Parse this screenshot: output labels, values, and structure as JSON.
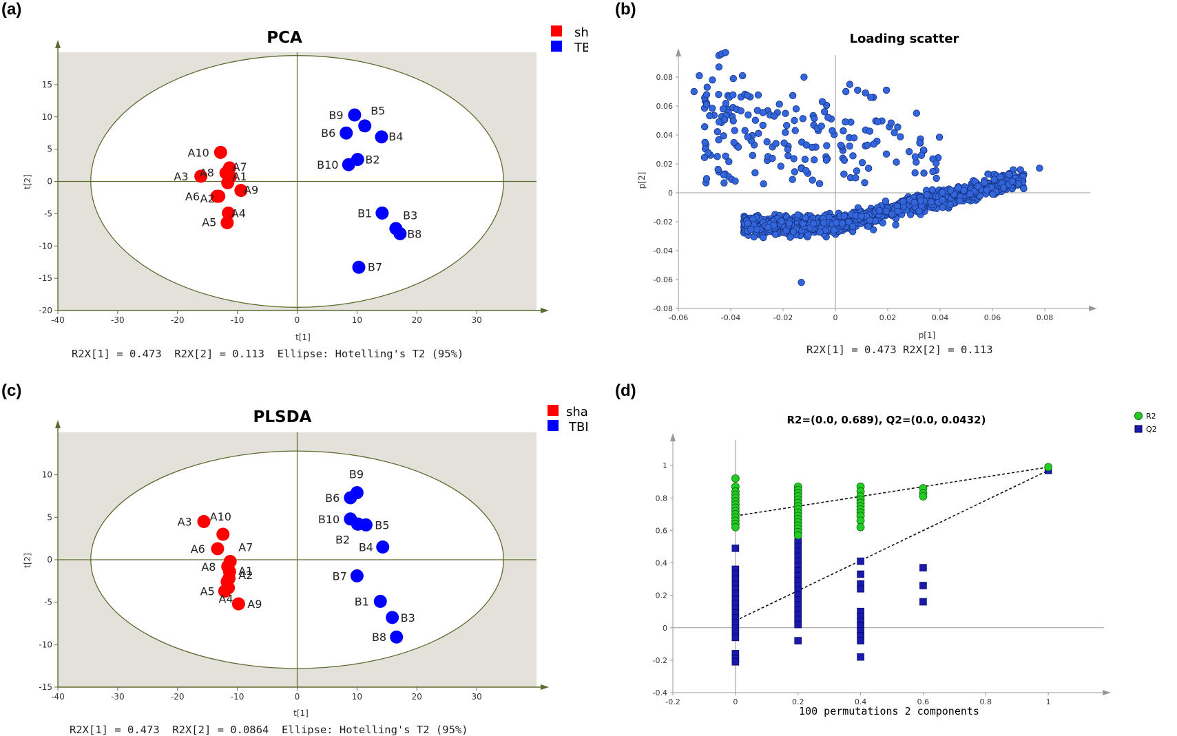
{
  "panels": [
    {
      "letter": "(a)"
    },
    {
      "letter": "(b)"
    },
    {
      "letter": "(c)"
    },
    {
      "letter": "(d)"
    }
  ],
  "colors": {
    "sham": "#ff0000",
    "tbi": "#0000ff",
    "plot_bg": "#e3e1d9",
    "ellipse_fill": "#ffffff",
    "axis": "#5c6b2f",
    "loading_point": "#3366dd",
    "loading_stroke": "#14307a",
    "r2_point": "#22cc22",
    "q2_point": "#1a1aaa"
  },
  "chart_data": [
    {
      "type": "scatter",
      "title": "PCA",
      "xlabel": "t[1]",
      "ylabel": "t[2]",
      "xlim": [
        -40,
        40
      ],
      "ylim": [
        -20,
        20
      ],
      "xticks": [
        -40,
        -30,
        -20,
        -10,
        0,
        10,
        20,
        30
      ],
      "yticks": [
        -20,
        -15,
        -10,
        -5,
        0,
        5,
        10,
        15
      ],
      "ellipse": {
        "rx": 34.5,
        "ry": 19.5
      },
      "footer": "R2X[1] = 0.473  R2X[2] = 0.113  Ellipse: Hotelling's T2 (95%)",
      "legend": [
        {
          "name": "sham",
          "color": "#ff0000"
        },
        {
          "name": "TBI",
          "color": "#0000ff"
        }
      ],
      "points": [
        {
          "label": "A10",
          "x": -12.8,
          "y": 4.5,
          "group": "sham",
          "lx": -16.5,
          "ly": 4.5
        },
        {
          "label": "A7",
          "x": -11.3,
          "y": 2.1,
          "group": "sham",
          "lx": -9.6,
          "ly": 2.3
        },
        {
          "label": "A8",
          "x": -11.9,
          "y": 1.3,
          "group": "sham",
          "lx": -15.1,
          "ly": 1.4
        },
        {
          "label": "A1",
          "x": -11.2,
          "y": 0.7,
          "group": "sham",
          "lx": -9.6,
          "ly": 0.8
        },
        {
          "label": "A3",
          "x": -16.1,
          "y": 0.8,
          "group": "sham",
          "lx": -19.4,
          "ly": 0.8
        },
        {
          "label": "",
          "x": -11.6,
          "y": -0.2,
          "group": "sham",
          "lx": 0,
          "ly": 0
        },
        {
          "label": "A9",
          "x": -9.4,
          "y": -1.4,
          "group": "sham",
          "lx": -7.7,
          "ly": -1.3
        },
        {
          "label": "A6",
          "x": -13.4,
          "y": -2.3,
          "group": "sham",
          "lx": -17.5,
          "ly": -2.3
        },
        {
          "label": "A2",
          "x": -13.1,
          "y": -2.3,
          "group": "sham",
          "lx": -15.0,
          "ly": -2.6
        },
        {
          "label": "A4",
          "x": -11.5,
          "y": -4.9,
          "group": "sham",
          "lx": -9.8,
          "ly": -4.9
        },
        {
          "label": "A5",
          "x": -11.7,
          "y": -6.4,
          "group": "sham",
          "lx": -14.7,
          "ly": -6.3
        },
        {
          "label": "B9",
          "x": 9.6,
          "y": 10.3,
          "group": "TBI",
          "lx": 6.5,
          "ly": 10.3
        },
        {
          "label": "B5",
          "x": 11.3,
          "y": 8.6,
          "group": "TBI",
          "lx": 13.5,
          "ly": 11.0
        },
        {
          "label": "B6",
          "x": 8.2,
          "y": 7.5,
          "group": "TBI",
          "lx": 5.2,
          "ly": 7.5
        },
        {
          "label": "B4",
          "x": 14.1,
          "y": 6.9,
          "group": "TBI",
          "lx": 16.5,
          "ly": 7.0
        },
        {
          "label": "B2",
          "x": 10.1,
          "y": 3.4,
          "group": "TBI",
          "lx": 12.6,
          "ly": 3.4
        },
        {
          "label": "B10",
          "x": 8.6,
          "y": 2.6,
          "group": "TBI",
          "lx": 5.1,
          "ly": 2.6
        },
        {
          "label": "B1",
          "x": 14.2,
          "y": -4.9,
          "group": "TBI",
          "lx": 11.3,
          "ly": -4.9
        },
        {
          "label": "B3",
          "x": 16.5,
          "y": -7.3,
          "group": "TBI",
          "lx": 18.9,
          "ly": -5.2
        },
        {
          "label": "B8",
          "x": 17.2,
          "y": -8.1,
          "group": "TBI",
          "lx": 19.6,
          "ly": -8.1
        },
        {
          "label": "B7",
          "x": 10.3,
          "y": -13.3,
          "group": "TBI",
          "lx": 13.0,
          "ly": -13.2
        }
      ]
    },
    {
      "type": "scatter",
      "title": "Loading scatter",
      "xlabel": "p[1]",
      "ylabel": "p[2]",
      "xlim": [
        -0.06,
        0.1
      ],
      "ylim": [
        -0.08,
        0.1
      ],
      "xticks": [
        -0.06,
        -0.04,
        -0.02,
        0,
        0.02,
        0.04,
        0.06,
        0.08
      ],
      "yticks": [
        -0.08,
        -0.06,
        -0.04,
        -0.02,
        0,
        0.02,
        0.04,
        0.06,
        0.08
      ],
      "footer": "R2X[1] = 0.473 R2X[2] = 0.113",
      "seed": 12345,
      "cluster": {
        "n": 1050
      },
      "sparse": {
        "n": 180
      },
      "points": [
        [
          -0.0445,
          0.095
        ],
        [
          -0.0435,
          0.096
        ],
        [
          -0.042,
          0.097
        ],
        [
          -0.0445,
          0.087
        ],
        [
          -0.052,
          0.081
        ],
        [
          -0.047,
          0.078
        ],
        [
          -0.0355,
          0.081
        ],
        [
          -0.039,
          0.079
        ],
        [
          -0.054,
          0.07
        ],
        [
          -0.049,
          0.073
        ],
        [
          -0.012,
          0.08
        ],
        [
          0.004,
          0.07
        ],
        [
          0.0085,
          0.071
        ],
        [
          0.0115,
          0.069
        ],
        [
          0.0145,
          0.066
        ],
        [
          0.0135,
          0.066
        ],
        [
          0.0055,
          0.075
        ],
        [
          0.0195,
          0.071
        ],
        [
          -0.005,
          0.063
        ],
        [
          -0.015,
          0.058
        ],
        [
          0.031,
          0.055
        ],
        [
          -0.063,
          -0.017
        ],
        [
          -0.013,
          -0.062
        ],
        [
          0.078,
          0.017
        ]
      ]
    },
    {
      "type": "scatter",
      "title": "PLSDA",
      "xlabel": "t[1]",
      "ylabel": "t[2]",
      "xlim": [
        -40,
        40
      ],
      "ylim": [
        -15,
        15
      ],
      "xticks": [
        -40,
        -30,
        -20,
        -10,
        0,
        10,
        20,
        30
      ],
      "yticks": [
        -15,
        -10,
        -5,
        0,
        5,
        10
      ],
      "ellipse": {
        "rx": 34.5,
        "ry": 12.8
      },
      "footer": "R2X[1] = 0.473  R2X[2] = 0.0864  Ellipse: Hotelling's T2 (95%)",
      "legend": [
        {
          "name": "sham",
          "color": "#ff0000"
        },
        {
          "name": "TBI",
          "color": "#0000ff"
        }
      ],
      "points": [
        {
          "label": "A3",
          "x": -15.6,
          "y": 4.5,
          "group": "sham",
          "lx": -18.8,
          "ly": 4.5
        },
        {
          "label": "A10",
          "x": -12.4,
          "y": 3.0,
          "group": "sham",
          "lx": -12.8,
          "ly": 5.1
        },
        {
          "label": "A6",
          "x": -13.3,
          "y": 1.3,
          "group": "sham",
          "lx": -16.6,
          "ly": 1.3
        },
        {
          "label": "A7",
          "x": -11.2,
          "y": -0.2,
          "group": "sham",
          "lx": -8.6,
          "ly": 1.5
        },
        {
          "label": "A8",
          "x": -11.6,
          "y": -0.8,
          "group": "sham",
          "lx": -14.8,
          "ly": -0.8
        },
        {
          "label": "A1",
          "x": -11.3,
          "y": -1.4,
          "group": "sham",
          "lx": -8.6,
          "ly": -1.3
        },
        {
          "label": "A2",
          "x": -11.4,
          "y": -2.2,
          "group": "sham",
          "lx": -8.6,
          "ly": -1.8
        },
        {
          "label": "",
          "x": -11.7,
          "y": -2.6,
          "group": "sham",
          "lx": 0,
          "ly": 0
        },
        {
          "label": "A5",
          "x": -12.1,
          "y": -3.7,
          "group": "sham",
          "lx": -15.0,
          "ly": -3.7
        },
        {
          "label": "A4",
          "x": -11.5,
          "y": -3.3,
          "group": "sham",
          "lx": -11.9,
          "ly": -4.6
        },
        {
          "label": "A9",
          "x": -9.8,
          "y": -5.2,
          "group": "sham",
          "lx": -7.1,
          "ly": -5.2
        },
        {
          "label": "B9",
          "x": 10.0,
          "y": 7.9,
          "group": "TBI",
          "lx": 9.9,
          "ly": 10.1
        },
        {
          "label": "B6",
          "x": 8.9,
          "y": 7.3,
          "group": "TBI",
          "lx": 5.9,
          "ly": 7.3
        },
        {
          "label": "B10",
          "x": 8.9,
          "y": 4.8,
          "group": "TBI",
          "lx": 5.3,
          "ly": 4.8
        },
        {
          "label": "",
          "x": 10.2,
          "y": 4.2,
          "group": "TBI",
          "lx": 0,
          "ly": 0
        },
        {
          "label": "B5",
          "x": 11.5,
          "y": 4.1,
          "group": "TBI",
          "lx": 14.2,
          "ly": 4.1
        },
        {
          "label": "B2",
          "x": 10.1,
          "y": 4.2,
          "group": "TBI",
          "lx": 7.6,
          "ly": 2.4
        },
        {
          "label": "B4",
          "x": 14.3,
          "y": 1.5,
          "group": "TBI",
          "lx": 11.5,
          "ly": 1.5
        },
        {
          "label": "B7",
          "x": 10.0,
          "y": -1.9,
          "group": "TBI",
          "lx": 7.1,
          "ly": -1.9
        },
        {
          "label": "B1",
          "x": 13.9,
          "y": -4.9,
          "group": "TBI",
          "lx": 10.8,
          "ly": -4.9
        },
        {
          "label": "B3",
          "x": 15.9,
          "y": -6.8,
          "group": "TBI",
          "lx": 18.5,
          "ly": -6.8
        },
        {
          "label": "B8",
          "x": 16.6,
          "y": -9.1,
          "group": "TBI",
          "lx": 13.7,
          "ly": -9.1
        }
      ]
    },
    {
      "type": "scatter",
      "title": "R2=(0.0, 0.689), Q2=(0.0, 0.0432)",
      "xlabel": "100 permutations 2 components",
      "ylabel": "",
      "xlim": [
        -0.2,
        1.2
      ],
      "ylim": [
        -0.4,
        1.2
      ],
      "xticks": [
        -0.2,
        0,
        0.2,
        0.4,
        0.6,
        0.8,
        1
      ],
      "yticks": [
        -0.4,
        -0.2,
        0,
        0.2,
        0.4,
        0.6,
        0.8,
        1
      ],
      "legend": [
        {
          "name": "R2",
          "color": "#22cc22"
        },
        {
          "name": "Q2",
          "color": "#1a1aaa"
        }
      ],
      "r2_line": [
        [
          0,
          0.689
        ],
        [
          1,
          0.99
        ]
      ],
      "q2_line": [
        [
          0,
          0.0432
        ],
        [
          1,
          0.97
        ]
      ],
      "series": [
        {
          "name": "R2",
          "x": 0,
          "values": [
            0.92,
            0.87,
            0.84,
            0.82,
            0.8,
            0.78,
            0.76,
            0.74,
            0.72,
            0.7,
            0.68,
            0.66,
            0.64,
            0.62
          ]
        },
        {
          "name": "R2",
          "x": 0.2,
          "values": [
            0.87,
            0.85,
            0.83,
            0.81,
            0.79,
            0.77,
            0.75,
            0.73,
            0.71,
            0.69,
            0.67,
            0.65,
            0.63,
            0.61,
            0.59,
            0.57
          ]
        },
        {
          "name": "R2",
          "x": 0.4,
          "values": [
            0.87,
            0.84,
            0.81,
            0.79,
            0.77,
            0.75,
            0.73,
            0.71,
            0.69,
            0.66,
            0.62
          ]
        },
        {
          "name": "R2",
          "x": 0.6,
          "values": [
            0.86,
            0.83,
            0.81
          ]
        },
        {
          "name": "R2",
          "x": 1,
          "values": [
            0.99
          ]
        },
        {
          "name": "Q2",
          "x": 0,
          "values": [
            0.49,
            0.36,
            0.33,
            0.3,
            0.27,
            0.24,
            0.21,
            0.18,
            0.15,
            0.12,
            0.09,
            0.06,
            0.03,
            0.0,
            -0.03,
            -0.06,
            -0.16,
            -0.19,
            -0.21
          ]
        },
        {
          "name": "Q2",
          "x": 0.2,
          "values": [
            0.69,
            0.53,
            0.5,
            0.47,
            0.44,
            0.41,
            0.38,
            0.35,
            0.32,
            0.29,
            0.26,
            0.23,
            0.2,
            0.17,
            0.14,
            0.11,
            0.08,
            0.05,
            0.02,
            -0.08
          ]
        },
        {
          "name": "Q2",
          "x": 0.4,
          "values": [
            0.41,
            0.33,
            0.27,
            0.24,
            0.1,
            0.07,
            0.04,
            0.01,
            -0.02,
            -0.05,
            -0.08,
            -0.18
          ]
        },
        {
          "name": "Q2",
          "x": 0.6,
          "values": [
            0.37,
            0.26,
            0.16
          ]
        },
        {
          "name": "Q2",
          "x": 1,
          "values": [
            0.97
          ]
        }
      ]
    }
  ]
}
